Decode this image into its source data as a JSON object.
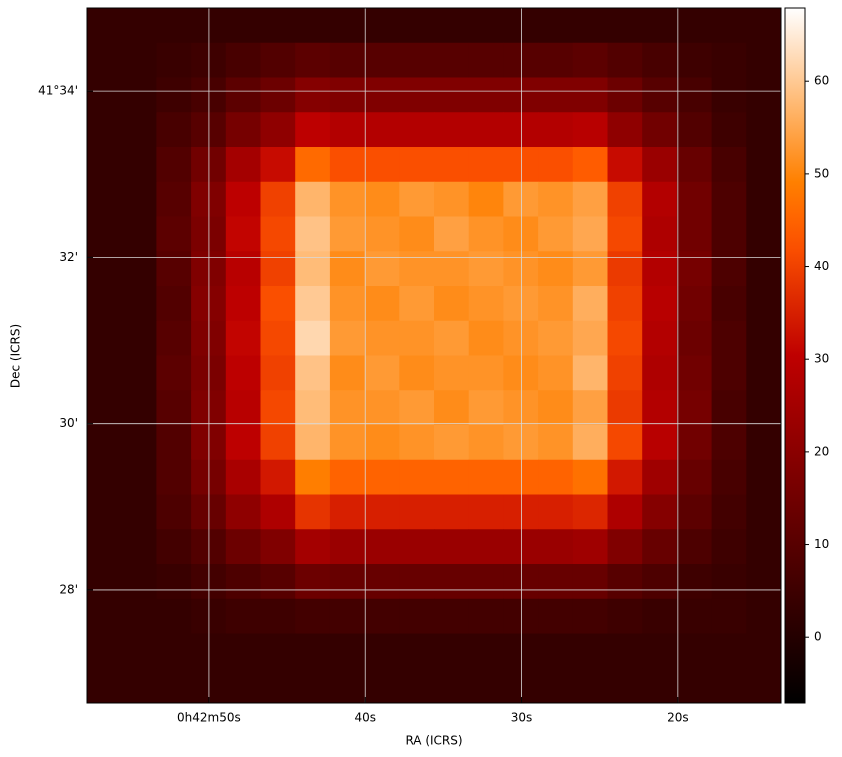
{
  "chart_data": {
    "type": "heatmap",
    "x_label": "RA (ICRS)",
    "y_label": "Dec (ICRS)",
    "xlim": [
      57.8,
      13.4
    ],
    "xticks": [
      {
        "value": 50,
        "label": "0h42m50s"
      },
      {
        "value": 40,
        "label": "40s"
      },
      {
        "value": 30,
        "label": "30s"
      },
      {
        "value": 20,
        "label": "20s"
      }
    ],
    "ylim": [
      26.64,
      35.0
    ],
    "yticks": [
      {
        "value": 34,
        "label": "41°34'"
      },
      {
        "value": 32,
        "label": "32'"
      },
      {
        "value": 30,
        "label": "30'"
      },
      {
        "value": 28,
        "label": "28'"
      }
    ],
    "grid": true,
    "grid_color": "#d9d9d9",
    "colormap": "gist_heat",
    "clim": [
      -7.1,
      67.9
    ],
    "colorbar_ticks": [
      0,
      10,
      20,
      30,
      40,
      50,
      60
    ],
    "values": [
      [
        3,
        3,
        3,
        3,
        3,
        3,
        3,
        3,
        3,
        3,
        3,
        3,
        3,
        3,
        3,
        3,
        3,
        3,
        3,
        3
      ],
      [
        3,
        3,
        4,
        5,
        7,
        9,
        11,
        10,
        10,
        10,
        10,
        10,
        10,
        10,
        11,
        9,
        7,
        5,
        4,
        3
      ],
      [
        3,
        3,
        5,
        7,
        11,
        14,
        19,
        18,
        18,
        18,
        18,
        18,
        18,
        18,
        18,
        14,
        10,
        7,
        4,
        3
      ],
      [
        3,
        3,
        7,
        10,
        16,
        21,
        30,
        28,
        28,
        28,
        28,
        28,
        28,
        28,
        29,
        21,
        15,
        9,
        5,
        3
      ],
      [
        3,
        3,
        9,
        15,
        25,
        32,
        46,
        42,
        42,
        42,
        42,
        42,
        42,
        42,
        44,
        32,
        23,
        13,
        7,
        3
      ],
      [
        3,
        3,
        10,
        18,
        30,
        40,
        57,
        52,
        51,
        53,
        52,
        50,
        53,
        52,
        54,
        40,
        28,
        15,
        8,
        3
      ],
      [
        3,
        3,
        11,
        17,
        31,
        41,
        59,
        53,
        52,
        51,
        54,
        52,
        51,
        53,
        55,
        41,
        27,
        15,
        8,
        3
      ],
      [
        3,
        3,
        10,
        18,
        29,
        40,
        58,
        51,
        53,
        52,
        52,
        53,
        52,
        51,
        53,
        39,
        28,
        16,
        8,
        3
      ],
      [
        3,
        3,
        9,
        19,
        30,
        42,
        60,
        52,
        51,
        53,
        51,
        52,
        53,
        52,
        56,
        40,
        29,
        15,
        7,
        3
      ],
      [
        3,
        3,
        10,
        18,
        31,
        41,
        62,
        53,
        52,
        52,
        53,
        51,
        52,
        53,
        55,
        41,
        28,
        14,
        8,
        3
      ],
      [
        3,
        3,
        11,
        17,
        30,
        40,
        59,
        51,
        53,
        51,
        52,
        52,
        51,
        52,
        57,
        40,
        27,
        15,
        8,
        3
      ],
      [
        3,
        3,
        10,
        18,
        29,
        41,
        58,
        52,
        52,
        53,
        51,
        53,
        52,
        51,
        54,
        39,
        28,
        16,
        7,
        3
      ],
      [
        3,
        3,
        9,
        18,
        30,
        40,
        57,
        52,
        51,
        52,
        53,
        52,
        53,
        52,
        56,
        41,
        29,
        15,
        8,
        3
      ],
      [
        3,
        3,
        9,
        16,
        26,
        34,
        49,
        45,
        45,
        45,
        45,
        45,
        45,
        45,
        47,
        34,
        24,
        13,
        7,
        3
      ],
      [
        3,
        3,
        8,
        13,
        21,
        27,
        38,
        35,
        35,
        35,
        35,
        35,
        35,
        35,
        36,
        27,
        19,
        11,
        6,
        3
      ],
      [
        3,
        3,
        6,
        9,
        14,
        18,
        25,
        23,
        23,
        23,
        23,
        23,
        23,
        23,
        24,
        18,
        13,
        8,
        5,
        3
      ],
      [
        3,
        3,
        4,
        6,
        8,
        10,
        14,
        13,
        13,
        13,
        13,
        13,
        13,
        13,
        13,
        10,
        8,
        5,
        4,
        3
      ],
      [
        3,
        3,
        3,
        4,
        5,
        5,
        6,
        6,
        6,
        6,
        6,
        6,
        6,
        6,
        6,
        5,
        4,
        4,
        4,
        3
      ],
      [
        3,
        3,
        3,
        3,
        3,
        3,
        3,
        3,
        3,
        3,
        3,
        3,
        3,
        3,
        3,
        3,
        3,
        3,
        3,
        3
      ],
      [
        3,
        3,
        3,
        3,
        3,
        3,
        3,
        3,
        3,
        3,
        3,
        3,
        3,
        3,
        3,
        3,
        3,
        3,
        3,
        3
      ]
    ]
  }
}
